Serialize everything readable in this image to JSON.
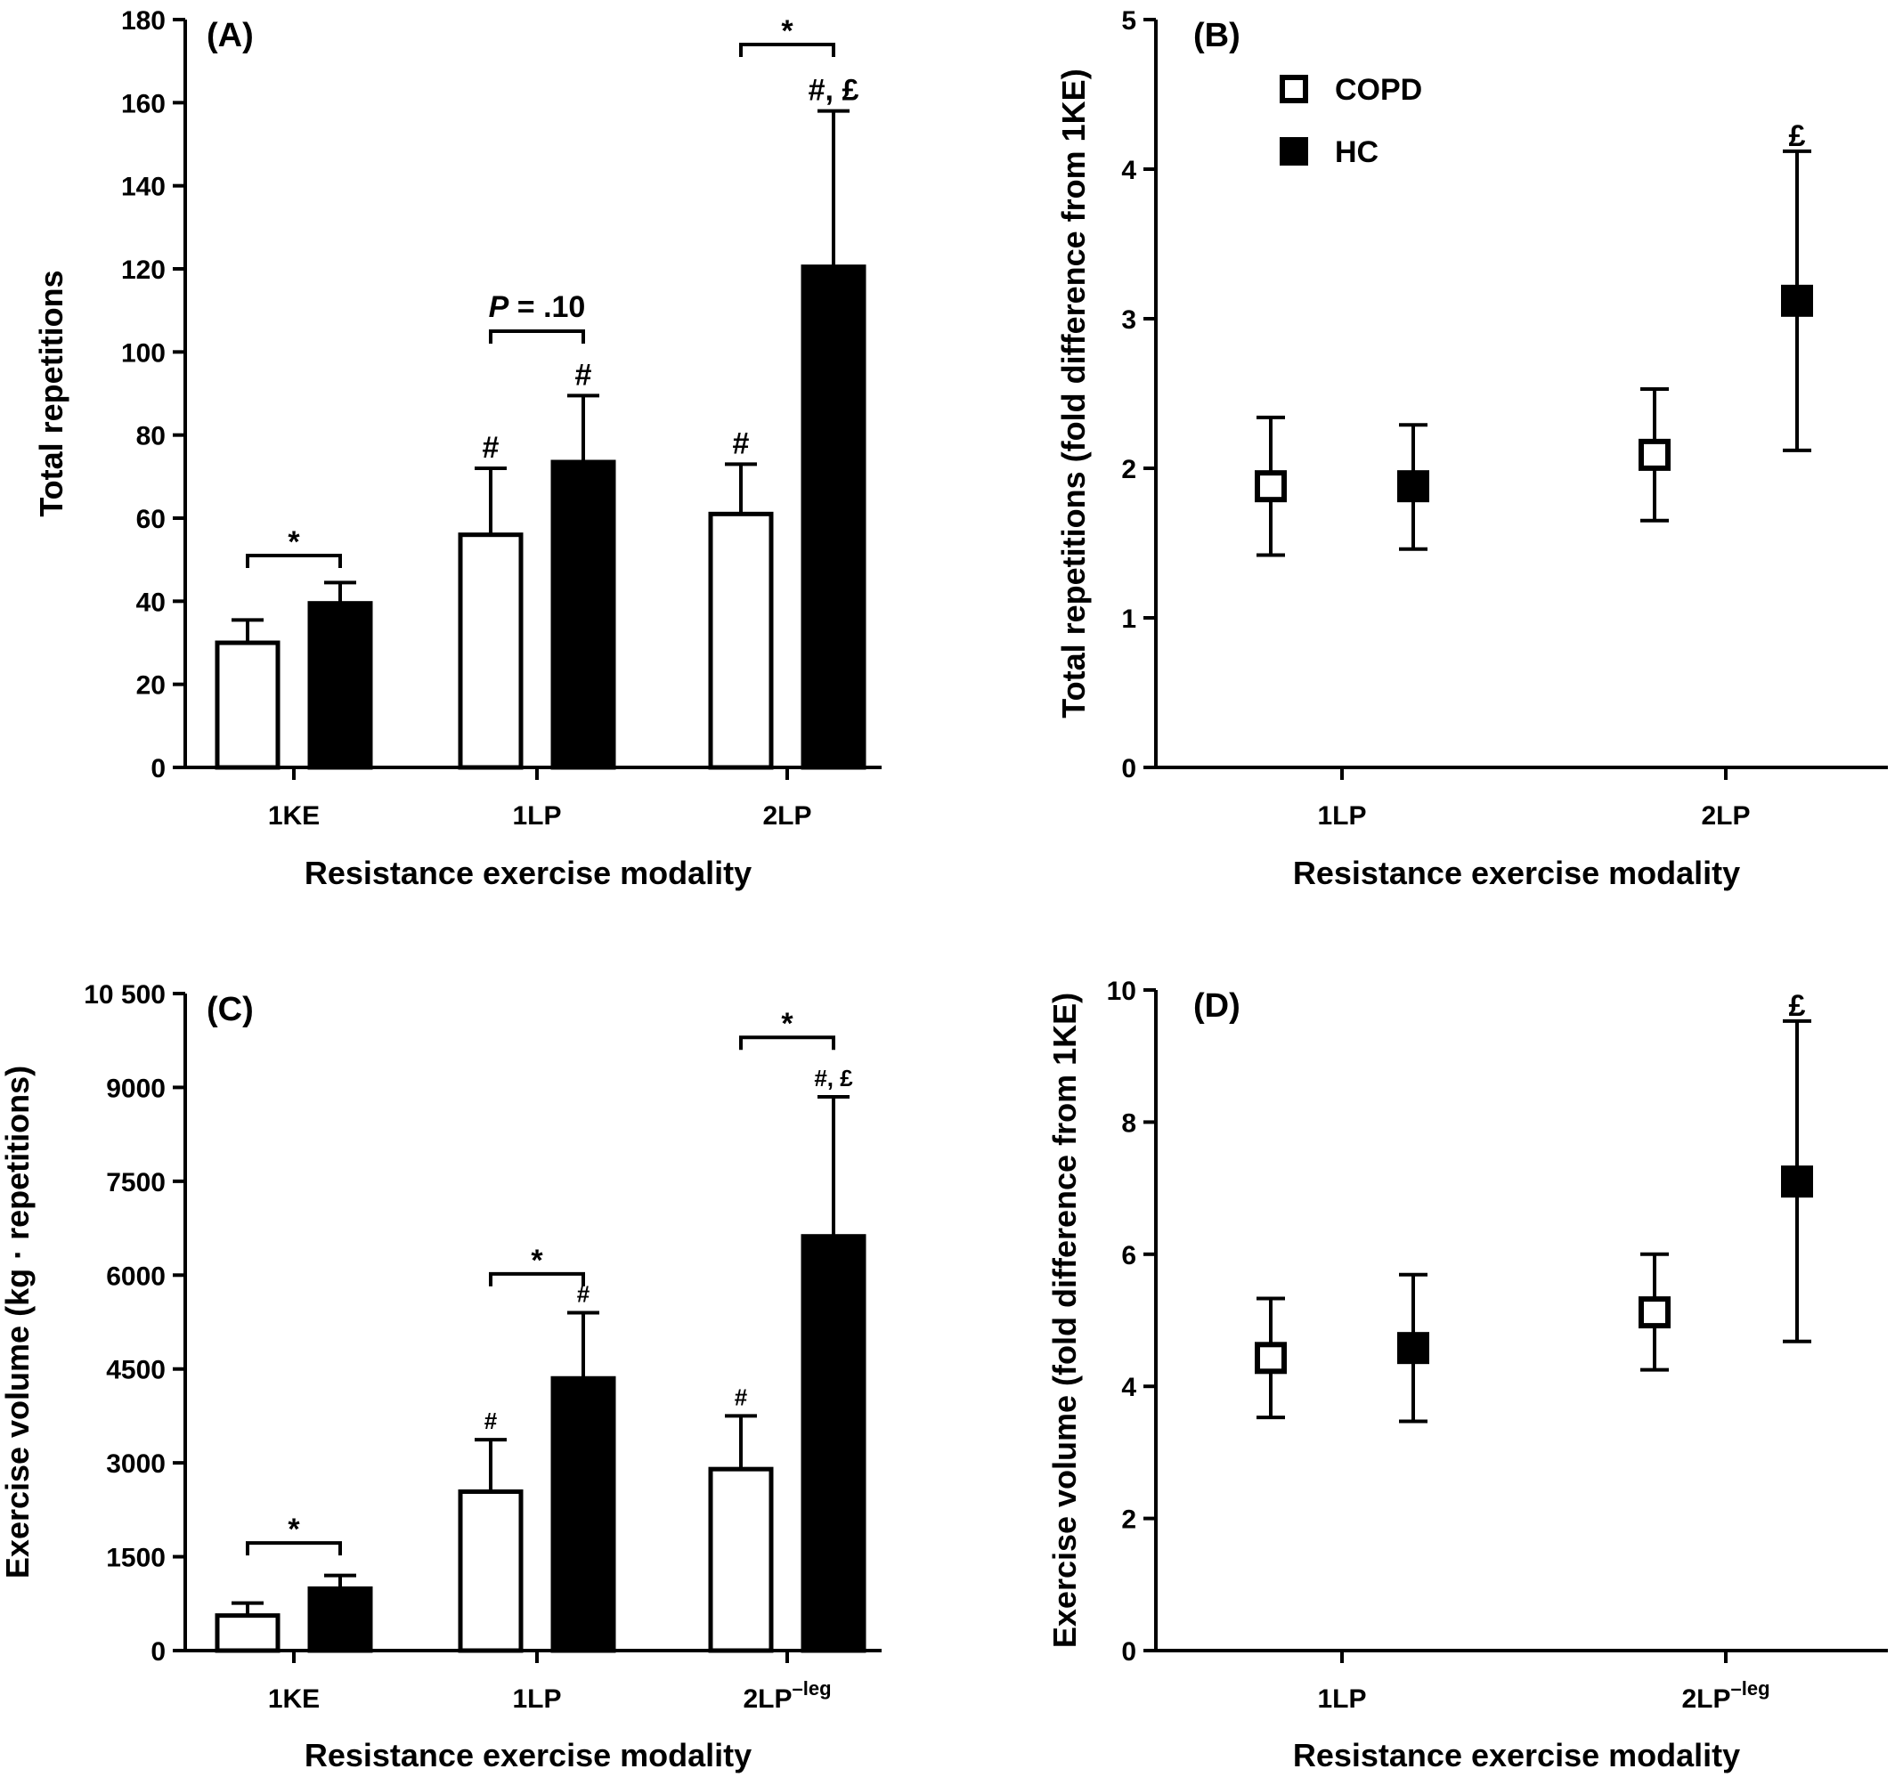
{
  "legend": [
    {
      "name": "COPD",
      "fill": "#ffffff",
      "stroke": "#000000"
    },
    {
      "name": "HC",
      "fill": "#000000",
      "stroke": "#000000"
    }
  ],
  "chart_data": [
    {
      "id": "A",
      "panel_label": "(A)",
      "type": "bar",
      "xlabel": "Resistance exercise modality",
      "ylabel": "Total repetitions",
      "ylim": [
        0,
        180
      ],
      "yticks": [
        0,
        20,
        40,
        60,
        80,
        100,
        120,
        140,
        160,
        180
      ],
      "categories": [
        {
          "label": "1KE",
          "sup": ""
        },
        {
          "label": "1LP",
          "sup": ""
        },
        {
          "label": "2LP",
          "sup": ""
        }
      ],
      "series": [
        {
          "name": "COPD",
          "values": [
            30,
            56,
            61
          ],
          "errors": [
            5.5,
            16,
            12
          ],
          "annotations": [
            "",
            "#",
            "#"
          ]
        },
        {
          "name": "HC",
          "values": [
            39.5,
            73.5,
            120.5
          ],
          "errors": [
            5,
            16,
            37.5
          ],
          "annotations": [
            "",
            "#",
            "#, £"
          ]
        }
      ],
      "comparisons": [
        {
          "category": 0,
          "text": "*",
          "y": 51
        },
        {
          "category": 1,
          "text": "P = .10",
          "y": 105
        },
        {
          "category": 2,
          "text": "*",
          "y": 174
        }
      ]
    },
    {
      "id": "B",
      "panel_label": "(B)",
      "type": "scatter",
      "xlabel": "Resistance exercise modality",
      "ylabel": "Total repetitions (fold difference from 1KE)",
      "ylim": [
        0,
        5
      ],
      "yticks": [
        0,
        1,
        2,
        3,
        4,
        5
      ],
      "categories": [
        {
          "label": "1LP",
          "sup": ""
        },
        {
          "label": "2LP",
          "sup": ""
        }
      ],
      "series": [
        {
          "name": "COPD",
          "values": [
            1.88,
            2.09
          ],
          "err_low": [
            1.42,
            1.65
          ],
          "err_high": [
            2.34,
            2.53
          ],
          "annotations": [
            "",
            ""
          ]
        },
        {
          "name": "HC",
          "values": [
            1.88,
            3.12
          ],
          "err_low": [
            1.46,
            2.12
          ],
          "err_high": [
            2.29,
            4.12
          ],
          "annotations": [
            "",
            "£"
          ]
        }
      ],
      "show_legend": true
    },
    {
      "id": "C",
      "panel_label": "(C)",
      "type": "bar",
      "xlabel": "Resistance exercise modality",
      "ylabel": "Exercise volume (kg · repetitions)",
      "ylim": [
        0,
        10500
      ],
      "yticks": [
        0,
        1500,
        3000,
        4500,
        6000,
        7500,
        9000,
        10500
      ],
      "ytick_labels": [
        "0",
        "1500",
        "3000",
        "4500",
        "6000",
        "7500",
        "9000",
        "10 500"
      ],
      "categories": [
        {
          "label": "1KE",
          "sup": ""
        },
        {
          "label": "1LP",
          "sup": ""
        },
        {
          "label": "2LP",
          "sup": "–leg"
        }
      ],
      "series": [
        {
          "name": "COPD",
          "values": [
            560,
            2540,
            2900
          ],
          "errors": [
            200,
            830,
            850
          ],
          "annotations": [
            "",
            "#",
            "#"
          ]
        },
        {
          "name": "HC",
          "values": [
            990,
            4350,
            6620
          ],
          "errors": [
            210,
            1050,
            2230
          ],
          "annotations": [
            "",
            "#",
            "#, £"
          ]
        }
      ],
      "comparisons": [
        {
          "category": 0,
          "text": "*",
          "y": 1720
        },
        {
          "category": 1,
          "text": "*",
          "y": 6020
        },
        {
          "category": 2,
          "text": "*",
          "y": 9800
        }
      ]
    },
    {
      "id": "D",
      "panel_label": "(D)",
      "type": "scatter",
      "xlabel": "Resistance exercise modality",
      "ylabel": "Exercise volume (fold difference from 1KE)",
      "ylim": [
        0,
        10
      ],
      "yticks": [
        0,
        2,
        4,
        6,
        8,
        10
      ],
      "categories": [
        {
          "label": "1LP",
          "sup": ""
        },
        {
          "label": "2LP",
          "sup": "–leg"
        }
      ],
      "series": [
        {
          "name": "COPD",
          "values": [
            4.43,
            5.12
          ],
          "err_low": [
            3.53,
            4.25
          ],
          "err_high": [
            5.33,
            6.0
          ],
          "annotations": [
            "",
            ""
          ]
        },
        {
          "name": "HC",
          "values": [
            4.58,
            7.1
          ],
          "err_low": [
            3.47,
            4.68
          ],
          "err_high": [
            5.69,
            9.53
          ],
          "annotations": [
            "",
            "£"
          ]
        }
      ],
      "show_legend": false
    }
  ]
}
